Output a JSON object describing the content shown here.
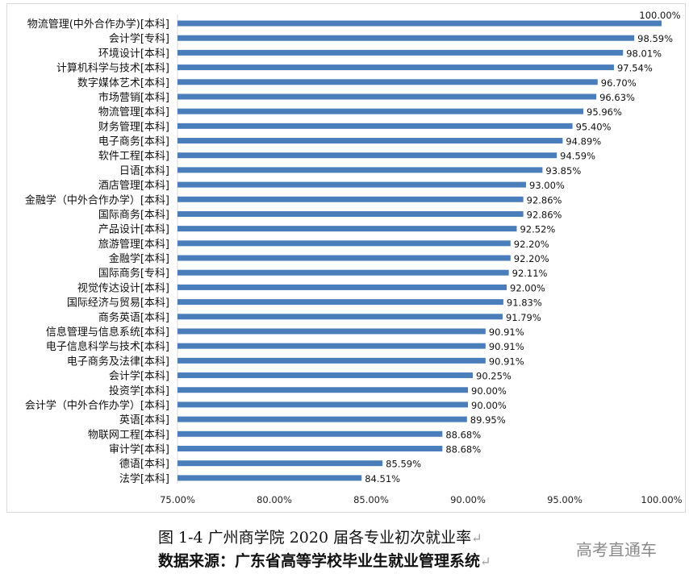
{
  "chart_data": {
    "type": "bar",
    "orientation": "horizontal",
    "categories": [
      "物流管理(中外合作办学)[本科]",
      "会计学[专科]",
      "环境设计[本科]",
      "计算机科学与技术[本科]",
      "数字媒体艺术[本科]",
      "市场营销[本科]",
      "物流管理[本科]",
      "财务管理[本科]",
      "电子商务[本科]",
      "软件工程[本科]",
      "日语[本科]",
      "酒店管理[本科]",
      "金融学（中外合作办学）[本科]",
      "国际商务[本科]",
      "产品设计[本科]",
      "旅游管理[本科]",
      "金融学[本科]",
      "国际商务[专科]",
      "视觉传达设计[本科]",
      "国际经济与贸易[本科]",
      "商务英语[本科]",
      "信息管理与信息系统[本科]",
      "电子信息科学与技术[本科]",
      "电子商务及法律[本科]",
      "会计学[本科]",
      "投资学[本科]",
      "会计学（中外合作办学）[本科]",
      "英语[本科]",
      "物联网工程[本科]",
      "审计学[本科]",
      "德语[本科]",
      "法学[本科]"
    ],
    "values": [
      100.0,
      98.59,
      98.01,
      97.54,
      96.7,
      96.63,
      95.96,
      95.4,
      94.89,
      94.59,
      93.85,
      93.0,
      92.86,
      92.86,
      92.52,
      92.2,
      92.2,
      92.11,
      92.0,
      91.83,
      91.79,
      90.91,
      90.91,
      90.91,
      90.25,
      90.0,
      90.0,
      89.95,
      88.68,
      88.68,
      85.59,
      84.51
    ],
    "data_labels": [
      "100.00%",
      "98.59%",
      "98.01%",
      "97.54%",
      "96.70%",
      "96.63%",
      "95.96%",
      "95.40%",
      "94.89%",
      "94.59%",
      "93.85%",
      "93.00%",
      "92.86%",
      "92.86%",
      "92.52%",
      "92.20%",
      "92.20%",
      "92.11%",
      "92.00%",
      "91.83%",
      "91.79%",
      "90.91%",
      "90.91%",
      "90.91%",
      "90.25%",
      "90.00%",
      "90.00%",
      "89.95%",
      "88.68%",
      "88.68%",
      "85.59%",
      "84.51%"
    ],
    "xlim": [
      75,
      100
    ],
    "x_ticks": [
      "75.00%",
      "80.00%",
      "85.00%",
      "90.00%",
      "95.00%",
      "100.00%"
    ],
    "grid": false,
    "bar_color": "#4a7ebb"
  },
  "caption": {
    "title": "图 1-4 广州商学院 2020 届各专业初次就业率",
    "source": "数据来源：广东省高等学校毕业生就业管理系统",
    "return_mark": "↵"
  },
  "watermark": "高考直通车"
}
